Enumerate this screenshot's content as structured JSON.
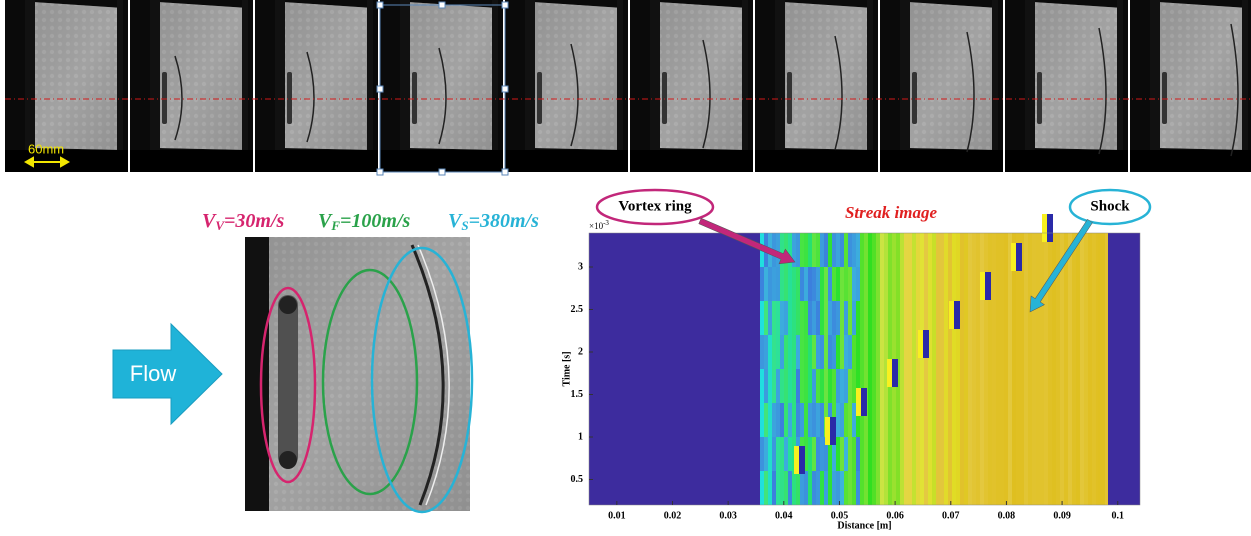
{
  "scale_label": "60mm",
  "flow_label": "Flow",
  "velocities": [
    {
      "symbol": "V",
      "subscript": "V",
      "text": "=30m/s",
      "color": "#d6246e"
    },
    {
      "symbol": "V",
      "subscript": "F",
      "text": "=100m/s",
      "color": "#2aa24a"
    },
    {
      "symbol": "V",
      "subscript": "S",
      "text": "=380m/s",
      "color": "#27b3d6"
    }
  ],
  "chart_data": {
    "type": "heatmap",
    "title": "Streak image",
    "xlabel": "Distance [m]",
    "ylabel": "Time [s]",
    "y_multiplier": {
      "base": "×10",
      "exponent": "-3"
    },
    "xlim": [
      0.005,
      0.104
    ],
    "xticks": [
      0.01,
      0.02,
      0.03,
      0.04,
      0.05,
      0.06,
      0.07,
      0.08,
      0.09,
      0.1
    ],
    "ylim": [
      0.2,
      3.4
    ],
    "yticks": [
      0.5,
      1,
      1.5,
      2,
      2.5,
      3
    ],
    "annotations": [
      {
        "text": "Vortex ring",
        "color": "#c2277a"
      },
      {
        "text": "Shock",
        "color": "#27b3d6"
      }
    ]
  }
}
